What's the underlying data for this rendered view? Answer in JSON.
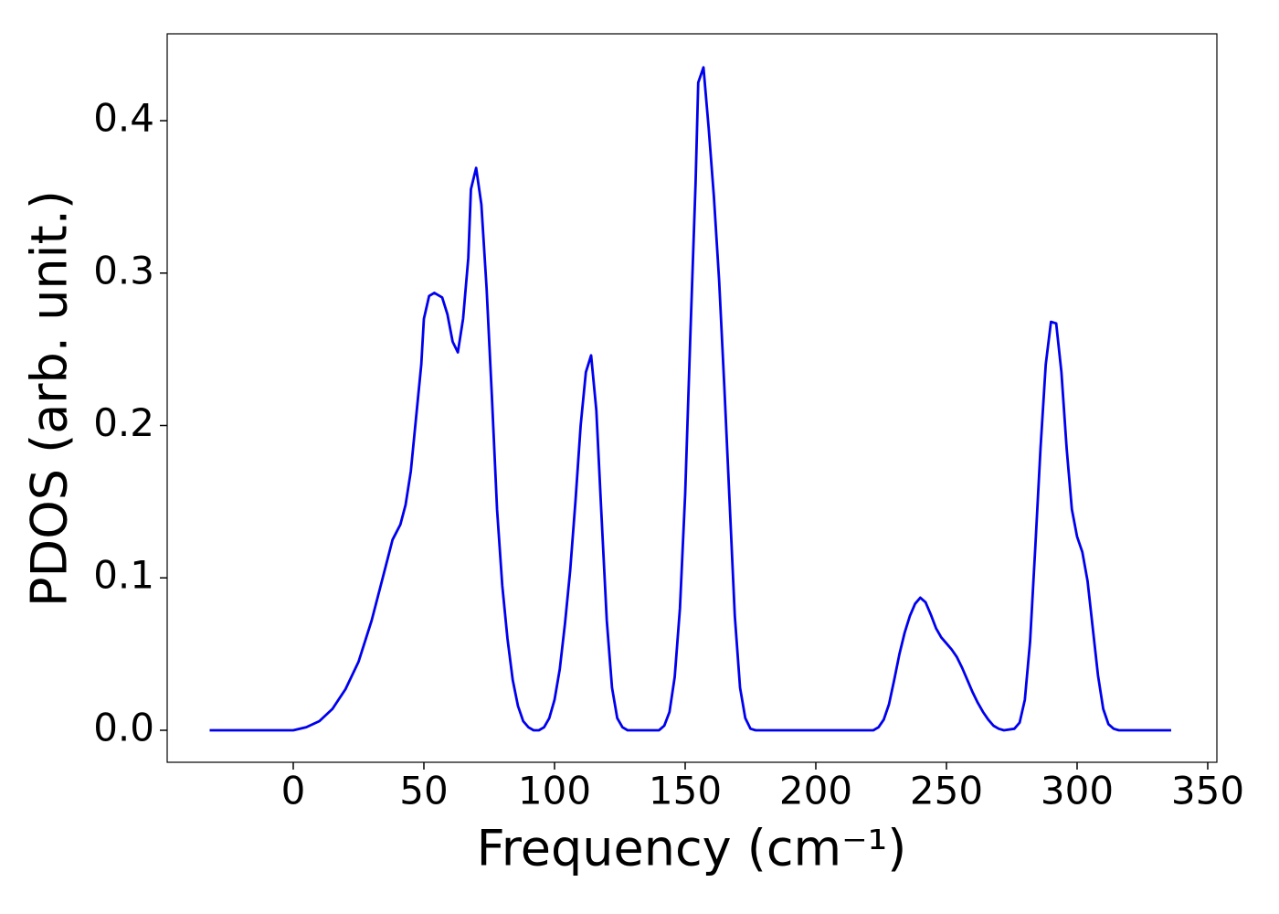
{
  "chart_data": {
    "type": "line",
    "xlabel": "Frequency (cm⁻¹)",
    "ylabel": "PDOS (arb. unit.)",
    "color": "#0000ee",
    "x": [
      -32,
      0,
      5,
      10,
      15,
      20,
      25,
      30,
      35,
      38,
      41,
      43,
      45,
      47,
      49,
      50,
      52,
      54,
      57,
      59,
      61,
      63,
      65,
      67,
      68,
      70,
      72,
      74,
      76,
      78,
      80,
      82,
      84,
      86,
      88,
      90,
      92,
      94,
      96,
      98,
      100,
      102,
      104,
      106,
      108,
      110,
      112,
      114,
      116,
      118,
      120,
      122,
      124,
      126,
      128,
      140,
      142,
      144,
      146,
      148,
      150,
      152,
      154,
      155,
      157,
      159,
      161,
      163,
      165,
      167,
      169,
      171,
      173,
      175,
      177,
      222,
      224,
      226,
      228,
      230,
      232,
      234,
      236,
      238,
      240,
      242,
      244,
      246,
      248,
      250,
      252,
      254,
      256,
      258,
      260,
      262,
      264,
      266,
      268,
      270,
      272,
      276,
      278,
      280,
      282,
      284,
      286,
      288,
      290,
      292,
      294,
      296,
      298,
      300,
      302,
      304,
      306,
      308,
      310,
      312,
      314,
      316,
      336
    ],
    "values": [
      0,
      0,
      0.002,
      0.006,
      0.014,
      0.027,
      0.045,
      0.072,
      0.105,
      0.125,
      0.135,
      0.148,
      0.17,
      0.205,
      0.24,
      0.27,
      0.285,
      0.287,
      0.284,
      0.273,
      0.255,
      0.248,
      0.27,
      0.31,
      0.355,
      0.369,
      0.345,
      0.29,
      0.22,
      0.145,
      0.095,
      0.06,
      0.033,
      0.016,
      0.006,
      0.002,
      0,
      0,
      0.002,
      0.008,
      0.02,
      0.04,
      0.07,
      0.105,
      0.15,
      0.2,
      0.235,
      0.246,
      0.21,
      0.14,
      0.072,
      0.028,
      0.008,
      0.002,
      0,
      0,
      0.003,
      0.012,
      0.035,
      0.08,
      0.155,
      0.26,
      0.36,
      0.425,
      0.435,
      0.395,
      0.35,
      0.295,
      0.225,
      0.15,
      0.075,
      0.028,
      0.008,
      0.001,
      0,
      0,
      0.002,
      0.007,
      0.017,
      0.033,
      0.05,
      0.064,
      0.075,
      0.083,
      0.087,
      0.084,
      0.076,
      0.067,
      0.061,
      0.057,
      0.053,
      0.048,
      0.041,
      0.033,
      0.025,
      0.018,
      0.012,
      0.007,
      0.003,
      0.001,
      0,
      0.001,
      0.005,
      0.02,
      0.058,
      0.12,
      0.185,
      0.24,
      0.268,
      0.267,
      0.235,
      0.185,
      0.145,
      0.127,
      0.117,
      0.098,
      0.067,
      0.036,
      0.014,
      0.004,
      0.001,
      0,
      0
    ],
    "xlim": [
      -48.25,
      353.5
    ],
    "ylim": [
      -0.021,
      0.457
    ],
    "xticks": [
      0,
      50,
      100,
      150,
      200,
      250,
      300,
      350
    ],
    "yticks": [
      {
        "value": 0,
        "label": "0.0"
      },
      0.1,
      0.2,
      0.3,
      0.4
    ],
    "grid": false
  }
}
